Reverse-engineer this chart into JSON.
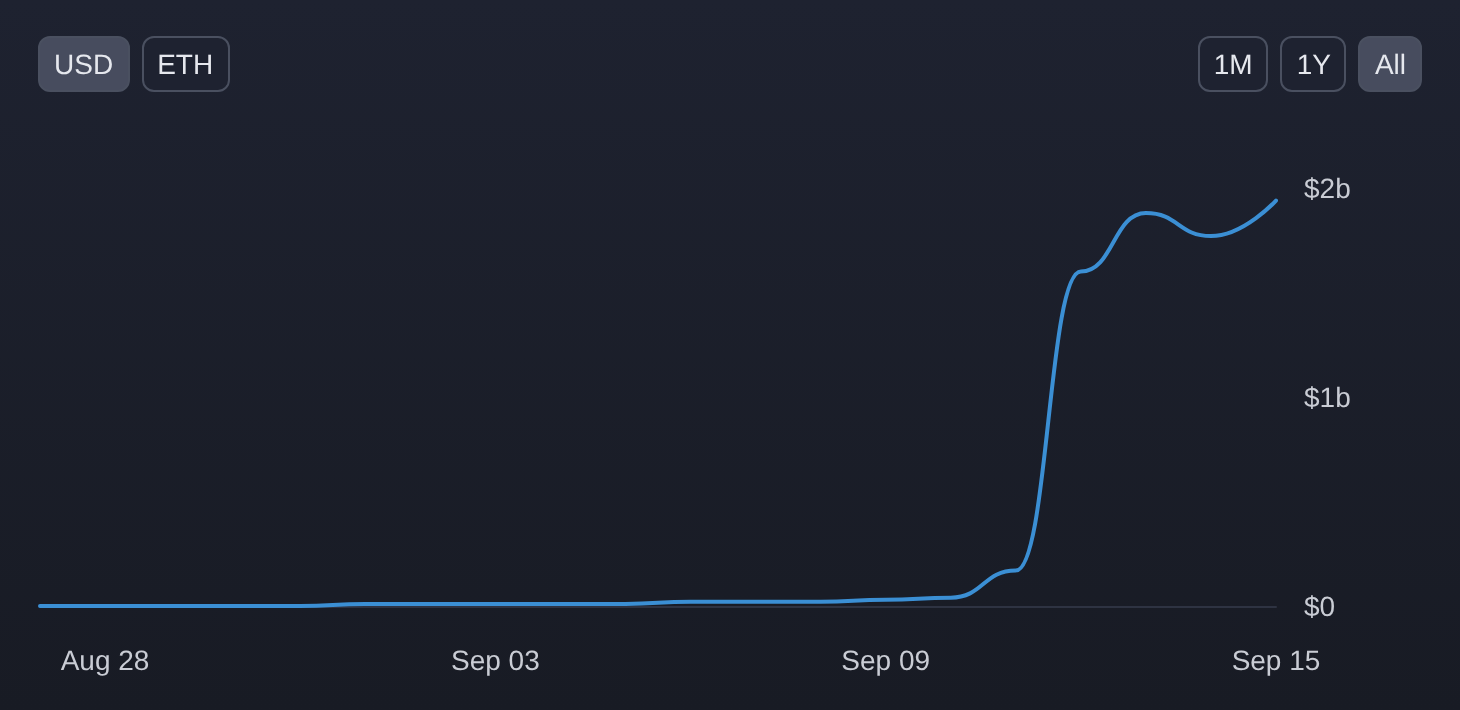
{
  "chart_data": {
    "type": "line",
    "annotations": [
      "USD",
      "ETH",
      "1M",
      "1Y",
      "All"
    ],
    "x": [
      "--08-27",
      "--08-28",
      "--08-29",
      "--08-30",
      "--08-31",
      "--09-01",
      "--09-02",
      "--09-03",
      "--09-04",
      "--09-05",
      "--09-06",
      "--09-07",
      "--09-08",
      "--09-09",
      "--09-10",
      "--09-11",
      "--09-12",
      "--09-13",
      "--09-14",
      "--09-15"
    ],
    "series": [
      {
        "color": "#3b8fd4",
        "values": [
          0,
          0,
          0,
          0,
          0,
          0.01,
          0.01,
          0.01,
          0.01,
          0.01,
          0.02,
          0.02,
          0.02,
          0.03,
          0.04,
          0.17,
          1.6,
          1.88,
          1.77,
          1.94
        ]
      }
    ],
    "xticks": [
      {
        "value": "--08-28",
        "label": "Aug 28"
      },
      {
        "value": "--09-03",
        "label": "Sep 03"
      },
      {
        "value": "--09-09",
        "label": "Sep 09"
      },
      {
        "value": "--09-15",
        "label": "Sep 15"
      }
    ],
    "xlim": [
      "--08-27",
      "--09-15"
    ],
    "ylim": [
      0,
      2
    ],
    "yticks": [
      {
        "value": 0,
        "label": "$0"
      },
      {
        "value": 1,
        "label": "$1b"
      },
      {
        "value": 2,
        "label": "$2b"
      }
    ],
    "grid": false,
    "marker": "none",
    "line_style": "solid"
  }
}
